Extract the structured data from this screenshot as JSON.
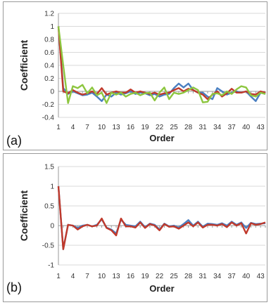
{
  "chart_data": [
    {
      "type": "line",
      "panel_label": "(a)",
      "xlabel": "Order",
      "ylabel": "Coefficient",
      "ylim": [
        -0.4,
        1.2
      ],
      "yticks": [
        "-0.4",
        "-0.2",
        "0",
        "0.2",
        "0.4",
        "0.6",
        "0.8",
        "1",
        "1.2"
      ],
      "x": [
        1,
        2,
        3,
        4,
        5,
        6,
        7,
        8,
        9,
        10,
        11,
        12,
        13,
        14,
        15,
        16,
        17,
        18,
        19,
        20,
        21,
        22,
        23,
        24,
        25,
        26,
        27,
        28,
        29,
        30,
        31,
        32,
        33,
        34,
        35,
        36,
        37,
        38,
        39,
        40,
        41,
        42,
        43,
        44
      ],
      "xtick_labels": [
        "1",
        "4",
        "7",
        "10",
        "13",
        "16",
        "19",
        "22",
        "25",
        "28",
        "31",
        "34",
        "37",
        "40",
        "43"
      ],
      "grid": true,
      "series": [
        {
          "color": "#4a7fc1",
          "values": [
            1.0,
            0.05,
            -0.04,
            0.0,
            -0.03,
            -0.06,
            -0.05,
            -0.02,
            -0.08,
            -0.15,
            -0.05,
            -0.08,
            -0.02,
            -0.05,
            -0.03,
            0.0,
            -0.04,
            -0.02,
            -0.03,
            -0.06,
            -0.04,
            -0.08,
            -0.05,
            -0.04,
            0.05,
            0.12,
            0.06,
            0.12,
            0.02,
            -0.02,
            -0.02,
            -0.08,
            -0.12,
            0.05,
            0.0,
            -0.05,
            -0.02,
            0.0,
            -0.02,
            0.0,
            -0.08,
            -0.15,
            -0.02,
            -0.04
          ]
        },
        {
          "color": "#c0392b",
          "values": [
            1.0,
            0.0,
            -0.03,
            0.02,
            -0.02,
            -0.05,
            -0.03,
            0.0,
            -0.04,
            0.05,
            -0.05,
            -0.02,
            0.0,
            -0.02,
            -0.02,
            0.03,
            -0.02,
            0.0,
            -0.02,
            -0.04,
            -0.02,
            -0.05,
            -0.03,
            -0.02,
            0.02,
            0.05,
            0.0,
            0.04,
            0.02,
            -0.02,
            -0.05,
            -0.12,
            -0.05,
            0.0,
            -0.08,
            -0.03,
            0.04,
            -0.02,
            -0.02,
            0.0,
            -0.04,
            -0.05,
            0.0,
            -0.02
          ]
        },
        {
          "color": "#8dc63f",
          "values": [
            1.0,
            0.4,
            -0.18,
            0.08,
            0.05,
            0.1,
            -0.03,
            0.06,
            -0.06,
            -0.02,
            -0.18,
            -0.02,
            -0.05,
            -0.02,
            -0.08,
            -0.04,
            -0.02,
            -0.06,
            -0.03,
            -0.02,
            -0.14,
            -0.02,
            0.06,
            -0.12,
            -0.02,
            -0.04,
            -0.02,
            0.02,
            0.06,
            0.02,
            -0.17,
            -0.16,
            -0.04,
            -0.03,
            -0.06,
            0.0,
            -0.04,
            0.03,
            0.08,
            0.06,
            -0.06,
            -0.08,
            -0.02,
            -0.04
          ]
        }
      ]
    },
    {
      "type": "line",
      "panel_label": "(b)",
      "xlabel": "Order",
      "ylabel": "Coefficient",
      "ylim": [
        -1,
        1.5
      ],
      "yticks": [
        "-1",
        "-0.5",
        "0",
        "0.5",
        "1",
        "1.5"
      ],
      "x": [
        1,
        2,
        3,
        4,
        5,
        6,
        7,
        8,
        9,
        10,
        11,
        12,
        13,
        14,
        15,
        16,
        17,
        18,
        19,
        20,
        21,
        22,
        23,
        24,
        25,
        26,
        27,
        28,
        29,
        30,
        31,
        32,
        33,
        34,
        35,
        36,
        37,
        38,
        39,
        40,
        41,
        42,
        43,
        44
      ],
      "xtick_labels": [
        "1",
        "4",
        "7",
        "10",
        "13",
        "16",
        "19",
        "22",
        "25",
        "28",
        "31",
        "34",
        "37",
        "40",
        "43"
      ],
      "grid": true,
      "series": [
        {
          "color": "#4a7fc1",
          "values": [
            1.0,
            -0.6,
            0.02,
            0.0,
            -0.06,
            0.0,
            0.02,
            -0.02,
            0.02,
            0.16,
            -0.05,
            -0.1,
            -0.2,
            0.15,
            0.02,
            0.0,
            -0.02,
            0.1,
            -0.04,
            0.05,
            0.02,
            -0.1,
            0.05,
            -0.02,
            0.0,
            -0.05,
            0.04,
            0.14,
            0.0,
            0.1,
            -0.03,
            0.05,
            0.04,
            0.02,
            0.06,
            0.0,
            0.1,
            0.02,
            0.08,
            -0.06,
            0.07,
            0.04,
            0.05,
            0.06
          ]
        },
        {
          "color": "#c0392b",
          "values": [
            1.0,
            -0.6,
            0.02,
            0.0,
            -0.1,
            -0.02,
            0.02,
            -0.02,
            0.0,
            0.18,
            -0.06,
            -0.12,
            -0.25,
            0.18,
            -0.02,
            -0.02,
            -0.05,
            0.08,
            -0.06,
            0.04,
            0.0,
            -0.12,
            0.04,
            -0.03,
            -0.02,
            -0.08,
            0.0,
            0.08,
            -0.02,
            0.08,
            -0.05,
            0.02,
            0.02,
            0.0,
            0.04,
            -0.04,
            0.08,
            0.0,
            0.06,
            -0.2,
            0.06,
            0.02,
            0.04,
            0.08
          ]
        }
      ]
    }
  ]
}
